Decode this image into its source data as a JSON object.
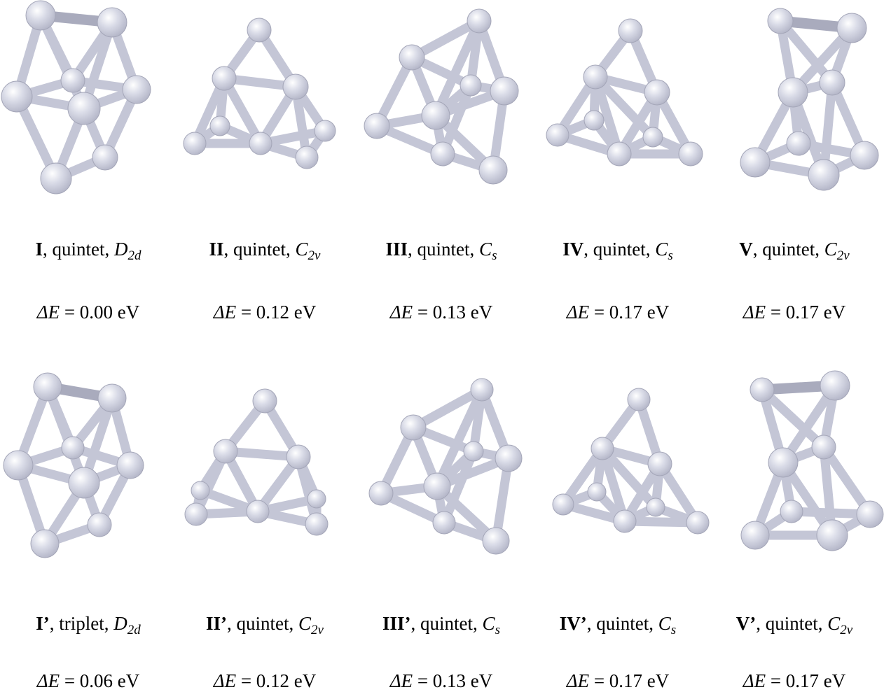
{
  "figure": {
    "colors": {
      "atom": "#d9dbe7",
      "atom_highlight": "#ffffff",
      "atom_shadow": "#b3b5c7",
      "bond": "#c4c6d6"
    },
    "clusters": [
      {
        "id": "I",
        "label": "I",
        "state": ", quintet, ",
        "sym": "D",
        "sub": "2d",
        "de_prefix": "ΔE",
        "de_value": " = 0.00 eV"
      },
      {
        "id": "II",
        "label": "II",
        "state": ", quintet, ",
        "sym": "C",
        "sub": "2v",
        "de_prefix": "ΔE",
        "de_value": " = 0.12 eV"
      },
      {
        "id": "III",
        "label": "III",
        "state": ", quintet, ",
        "sym": "C",
        "sub": "s",
        "de_prefix": "ΔE",
        "de_value": " = 0.13 eV"
      },
      {
        "id": "IV",
        "label": "IV",
        "state": ", quintet, ",
        "sym": "C",
        "sub": "s",
        "de_prefix": "ΔE",
        "de_value": " = 0.17 eV"
      },
      {
        "id": "V",
        "label": "V",
        "state": ", quintet, ",
        "sym": "C",
        "sub": "2v",
        "de_prefix": "ΔE",
        "de_value": " = 0.17 eV"
      },
      {
        "id": "I'",
        "label": "I’",
        "state": ", triplet, ",
        "sym": "D",
        "sub": "2d",
        "de_prefix": "ΔE",
        "de_value": " = 0.06 eV"
      },
      {
        "id": "II'",
        "label": "II’",
        "state": ", quintet, ",
        "sym": "C",
        "sub": "2v",
        "de_prefix": "ΔE",
        "de_value": " = 0.12 eV"
      },
      {
        "id": "III'",
        "label": "III’",
        "state": ", quintet, ",
        "sym": "C",
        "sub": "s",
        "de_prefix": "ΔE",
        "de_value": " = 0.13 eV"
      },
      {
        "id": "IV'",
        "label": "IV’",
        "state": ", quintet, ",
        "sym": "C",
        "sub": "s",
        "de_prefix": "ΔE",
        "de_value": " = 0.17 eV"
      },
      {
        "id": "V'",
        "label": "V’",
        "state": ", quintet, ",
        "sym": "C",
        "sub": "2v",
        "de_prefix": "ΔE",
        "de_value": " = 0.17 eV"
      }
    ]
  }
}
